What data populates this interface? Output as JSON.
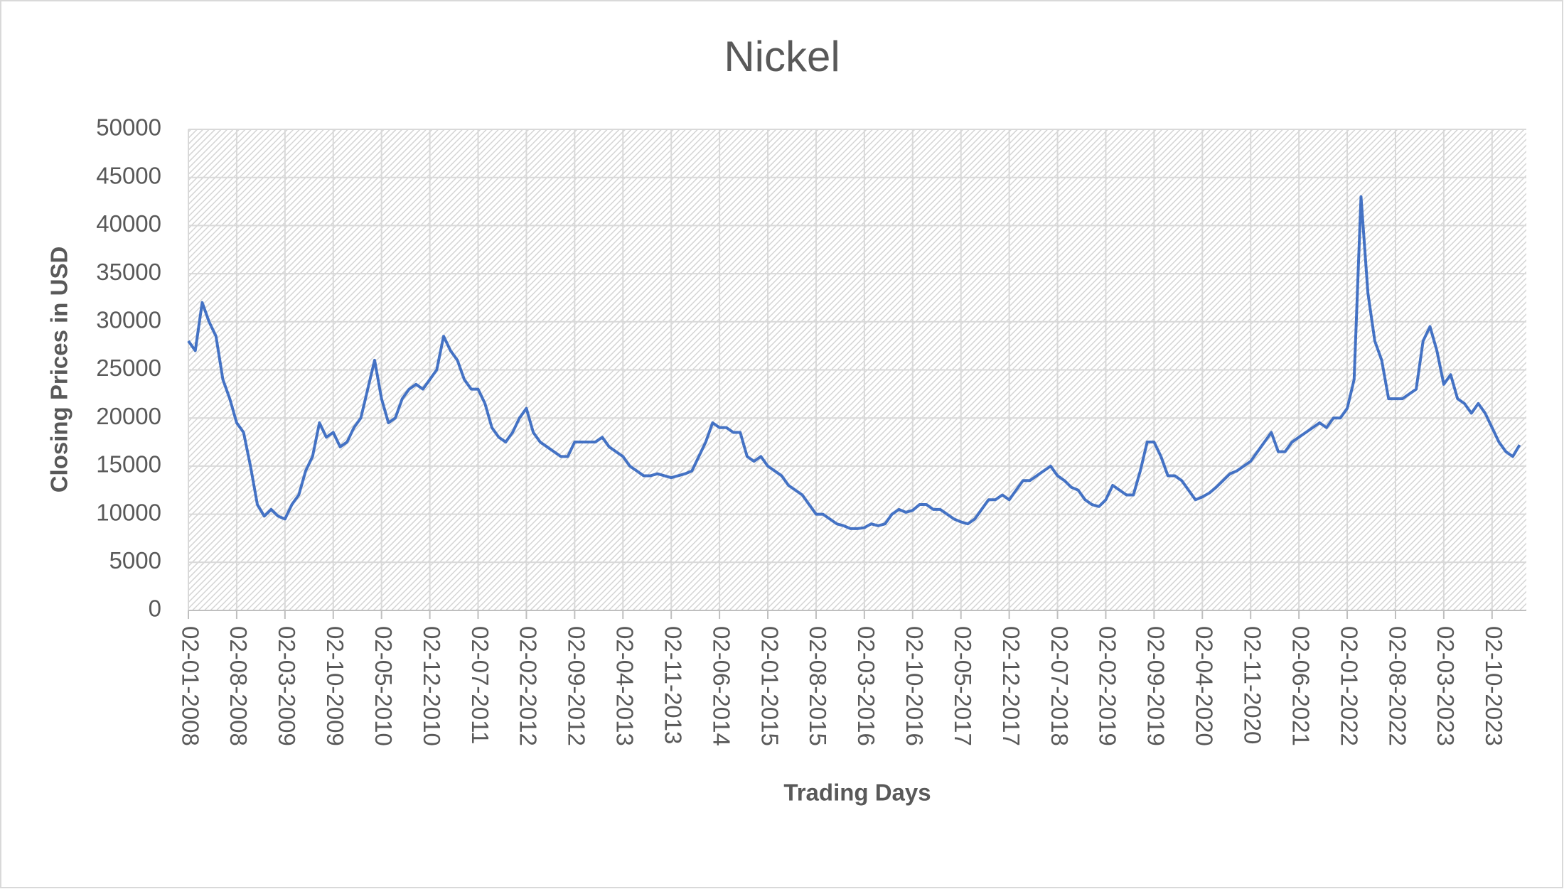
{
  "chart_data": {
    "type": "line",
    "title": "Nickel",
    "x_label": "Trading Days",
    "y_label": "Closing Prices in USD",
    "color": "#4472c4",
    "grid": true,
    "x": [
      "02-01-2008",
      "02-02-2008",
      "02-03-2008",
      "02-04-2008",
      "02-05-2008",
      "02-06-2008",
      "02-07-2008",
      "02-08-2008",
      "02-09-2008",
      "02-10-2008",
      "02-11-2008",
      "02-12-2008",
      "02-01-2009",
      "02-02-2009",
      "02-03-2009",
      "02-04-2009",
      "02-05-2009",
      "02-06-2009",
      "02-07-2009",
      "02-08-2009",
      "02-09-2009",
      "02-10-2009",
      "02-11-2009",
      "02-12-2009",
      "02-01-2010",
      "02-02-2010",
      "02-03-2010",
      "02-04-2010",
      "02-05-2010",
      "02-06-2010",
      "02-07-2010",
      "02-08-2010",
      "02-09-2010",
      "02-10-2010",
      "02-11-2010",
      "02-12-2010",
      "02-01-2011",
      "02-02-2011",
      "02-03-2011",
      "02-04-2011",
      "02-05-2011",
      "02-06-2011",
      "02-07-2011",
      "02-08-2011",
      "02-09-2011",
      "02-10-2011",
      "02-11-2011",
      "02-12-2011",
      "02-01-2012",
      "02-02-2012",
      "02-03-2012",
      "02-04-2012",
      "02-05-2012",
      "02-06-2012",
      "02-07-2012",
      "02-08-2012",
      "02-09-2012",
      "02-10-2012",
      "02-11-2012",
      "02-12-2012",
      "02-01-2013",
      "02-02-2013",
      "02-03-2013",
      "02-04-2013",
      "02-05-2013",
      "02-06-2013",
      "02-07-2013",
      "02-08-2013",
      "02-09-2013",
      "02-10-2013",
      "02-11-2013",
      "02-12-2013",
      "02-01-2014",
      "02-02-2014",
      "02-03-2014",
      "02-04-2014",
      "02-05-2014",
      "02-06-2014",
      "02-07-2014",
      "02-08-2014",
      "02-09-2014",
      "02-10-2014",
      "02-11-2014",
      "02-12-2014",
      "02-01-2015",
      "02-02-2015",
      "02-03-2015",
      "02-04-2015",
      "02-05-2015",
      "02-06-2015",
      "02-07-2015",
      "02-08-2015",
      "02-09-2015",
      "02-10-2015",
      "02-11-2015",
      "02-12-2015",
      "02-01-2016",
      "02-02-2016",
      "02-03-2016",
      "02-04-2016",
      "02-05-2016",
      "02-06-2016",
      "02-07-2016",
      "02-08-2016",
      "02-09-2016",
      "02-10-2016",
      "02-11-2016",
      "02-12-2016",
      "02-01-2017",
      "02-02-2017",
      "02-03-2017",
      "02-04-2017",
      "02-05-2017",
      "02-06-2017",
      "02-07-2017",
      "02-08-2017",
      "02-09-2017",
      "02-10-2017",
      "02-11-2017",
      "02-12-2017",
      "02-01-2018",
      "02-02-2018",
      "02-03-2018",
      "02-04-2018",
      "02-05-2018",
      "02-06-2018",
      "02-07-2018",
      "02-08-2018",
      "02-09-2018",
      "02-10-2018",
      "02-11-2018",
      "02-12-2018",
      "02-01-2019",
      "02-02-2019",
      "02-03-2019",
      "02-04-2019",
      "02-05-2019",
      "02-06-2019",
      "02-07-2019",
      "02-08-2019",
      "02-09-2019",
      "02-10-2019",
      "02-11-2019",
      "02-12-2019",
      "02-01-2020",
      "02-02-2020",
      "02-03-2020",
      "02-04-2020",
      "02-05-2020",
      "02-06-2020",
      "02-07-2020",
      "02-08-2020",
      "02-09-2020",
      "02-10-2020",
      "02-11-2020",
      "02-12-2020",
      "02-01-2021",
      "02-02-2021",
      "02-03-2021",
      "02-04-2021",
      "02-05-2021",
      "02-06-2021",
      "02-07-2021",
      "02-08-2021",
      "02-09-2021",
      "02-10-2021",
      "02-11-2021",
      "02-12-2021",
      "02-01-2022",
      "02-02-2022",
      "02-03-2022",
      "02-04-2022",
      "02-05-2022",
      "02-06-2022",
      "02-07-2022",
      "02-08-2022",
      "02-09-2022",
      "02-10-2022",
      "02-11-2022",
      "02-12-2022",
      "02-01-2023",
      "02-02-2023",
      "02-03-2023",
      "02-04-2023",
      "02-05-2023",
      "02-06-2023",
      "02-07-2023",
      "02-08-2023",
      "02-09-2023",
      "02-10-2023",
      "02-11-2023",
      "02-12-2023",
      "02-01-2024",
      "02-02-2024"
    ],
    "values": [
      28000,
      27000,
      32000,
      30000,
      28500,
      24000,
      22000,
      19500,
      18500,
      15000,
      11000,
      9800,
      10500,
      9800,
      9500,
      11000,
      12000,
      14500,
      16000,
      19500,
      18000,
      18500,
      17000,
      17500,
      19000,
      20000,
      23000,
      26000,
      22000,
      19500,
      20000,
      22000,
      23000,
      23500,
      23000,
      24000,
      25000,
      28500,
      27000,
      26000,
      24000,
      23000,
      23000,
      21500,
      19000,
      18000,
      17500,
      18500,
      20000,
      21000,
      18500,
      17500,
      17000,
      16500,
      16000,
      16000,
      17500,
      17500,
      17500,
      17500,
      18000,
      17000,
      16500,
      16000,
      15000,
      14500,
      14000,
      14000,
      14200,
      14000,
      13800,
      14000,
      14200,
      14500,
      16000,
      17500,
      19500,
      19000,
      19000,
      18500,
      18500,
      16000,
      15500,
      16000,
      15000,
      14500,
      14000,
      13000,
      12500,
      12000,
      11000,
      10000,
      10000,
      9500,
      9000,
      8800,
      8500,
      8500,
      8600,
      9000,
      8800,
      9000,
      10000,
      10500,
      10200,
      10400,
      11000,
      11000,
      10500,
      10500,
      10000,
      9500,
      9200,
      9000,
      9500,
      10500,
      11500,
      11500,
      12000,
      11500,
      12500,
      13500,
      13500,
      14000,
      14500,
      15000,
      14000,
      13500,
      12800,
      12500,
      11500,
      11000,
      10800,
      11500,
      13000,
      12500,
      12000,
      12000,
      14500,
      17500,
      17500,
      16000,
      14000,
      14000,
      13500,
      12500,
      11500,
      11800,
      12200,
      12800,
      13500,
      14200,
      14500,
      15000,
      15500,
      16500,
      17500,
      18500,
      16500,
      16500,
      17500,
      18000,
      18500,
      19000,
      19500,
      19000,
      20000,
      20000,
      21000,
      24000,
      43000,
      33000,
      28000,
      26000,
      22000,
      22000,
      22000,
      22500,
      23000,
      28000,
      29500,
      27000,
      23500,
      24500,
      22000,
      21500,
      20500,
      21500,
      20500,
      19000,
      17500,
      16500,
      16000,
      17200
    ],
    "xlim": [
      "02-01-2008",
      "01-03-2024"
    ],
    "xticks": [
      "02-01-2008",
      "02-08-2008",
      "02-03-2009",
      "02-10-2009",
      "02-05-2010",
      "02-12-2010",
      "02-07-2011",
      "02-02-2012",
      "02-09-2012",
      "02-04-2013",
      "02-11-2013",
      "02-06-2014",
      "02-01-2015",
      "02-08-2015",
      "02-03-2016",
      "02-10-2016",
      "02-05-2017",
      "02-12-2017",
      "02-07-2018",
      "02-02-2019",
      "02-09-2019",
      "02-04-2020",
      "02-11-2020",
      "02-06-2021",
      "02-01-2022",
      "02-08-2022",
      "02-03-2023",
      "02-10-2023"
    ],
    "ylim": [
      0,
      50000
    ],
    "yticks": [
      0,
      5000,
      10000,
      15000,
      20000,
      25000,
      30000,
      35000,
      40000,
      45000,
      50000
    ]
  }
}
